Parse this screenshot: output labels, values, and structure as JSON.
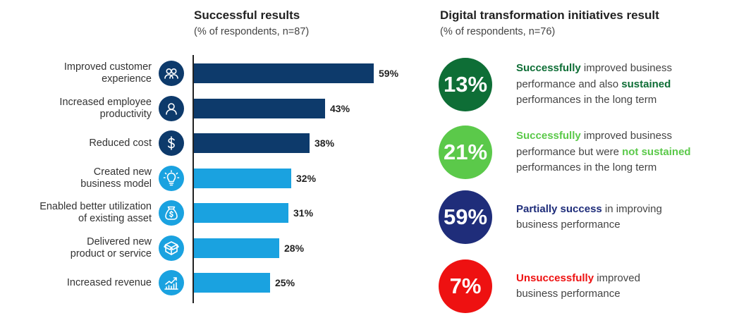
{
  "left_panel": {
    "title": "Successful results",
    "subtitle": "(% of respondents, n=87)"
  },
  "right_panel": {
    "title": "Digital transformation initiatives result",
    "subtitle": "(% of respondents, n=76)",
    "items": [
      {
        "value_label": "13%",
        "color": "#0e6e36",
        "parts": [
          {
            "text": "Successfully",
            "bold": true,
            "color": "#0e6e36"
          },
          {
            "text": " improved business\nperformance and also ",
            "bold": false,
            "color": "#444444"
          },
          {
            "text": "sustained",
            "bold": true,
            "color": "#0e6e36"
          },
          {
            "text": "\nperformances in the long term",
            "bold": false,
            "color": "#444444"
          }
        ]
      },
      {
        "value_label": "21%",
        "color": "#5bc94a",
        "parts": [
          {
            "text": "Successfully",
            "bold": true,
            "color": "#5bc94a"
          },
          {
            "text": " improved business\nperformance but were ",
            "bold": false,
            "color": "#444444"
          },
          {
            "text": "not sustained",
            "bold": true,
            "color": "#5bc94a"
          },
          {
            "text": "\nperformances in the long term",
            "bold": false,
            "color": "#444444"
          }
        ]
      },
      {
        "value_label": "59%",
        "color": "#1f2d7a",
        "parts": [
          {
            "text": "Partially success",
            "bold": true,
            "color": "#1f2d7a"
          },
          {
            "text": " in improving\nbusiness performance",
            "bold": false,
            "color": "#444444"
          }
        ]
      },
      {
        "value_label": "7%",
        "color": "#ee1111",
        "parts": [
          {
            "text": "Unsuccessfully",
            "bold": true,
            "color": "#ee1111"
          },
          {
            "text": " improved\nbusiness performance",
            "bold": false,
            "color": "#444444"
          }
        ]
      }
    ]
  },
  "chart_data": [
    {
      "type": "bar",
      "orientation": "horizontal",
      "title": "Successful results",
      "subtitle": "(% of respondents, n=87)",
      "categories": [
        "Improved customer\nexperience",
        "Increased employee\nproductivity",
        "Reduced cost",
        "Created new\nbusiness model",
        "Enabled better utilization\nof existing asset",
        "Delivered new\nproduct or service",
        "Increased revenue"
      ],
      "values": [
        59,
        43,
        38,
        32,
        31,
        28,
        25
      ],
      "value_labels": [
        "59%",
        "43%",
        "38%",
        "32%",
        "31%",
        "28%",
        "25%"
      ],
      "icons": [
        "people-icon",
        "person-icon",
        "dollar-icon",
        "lightbulb-icon",
        "money-bag-icon",
        "package-icon",
        "growth-chart-icon"
      ],
      "bar_colors": [
        "#0d3a6b",
        "#0d3a6b",
        "#0d3a6b",
        "#1aa2e0",
        "#1aa2e0",
        "#1aa2e0",
        "#1aa2e0"
      ],
      "xlim": [
        0,
        100
      ],
      "grid": false
    },
    {
      "type": "table",
      "title": "Digital transformation initiatives result",
      "subtitle": "(% of respondents, n=76)",
      "values": [
        13,
        21,
        59,
        7
      ],
      "value_labels": [
        "13%",
        "21%",
        "59%",
        "7%"
      ]
    }
  ]
}
